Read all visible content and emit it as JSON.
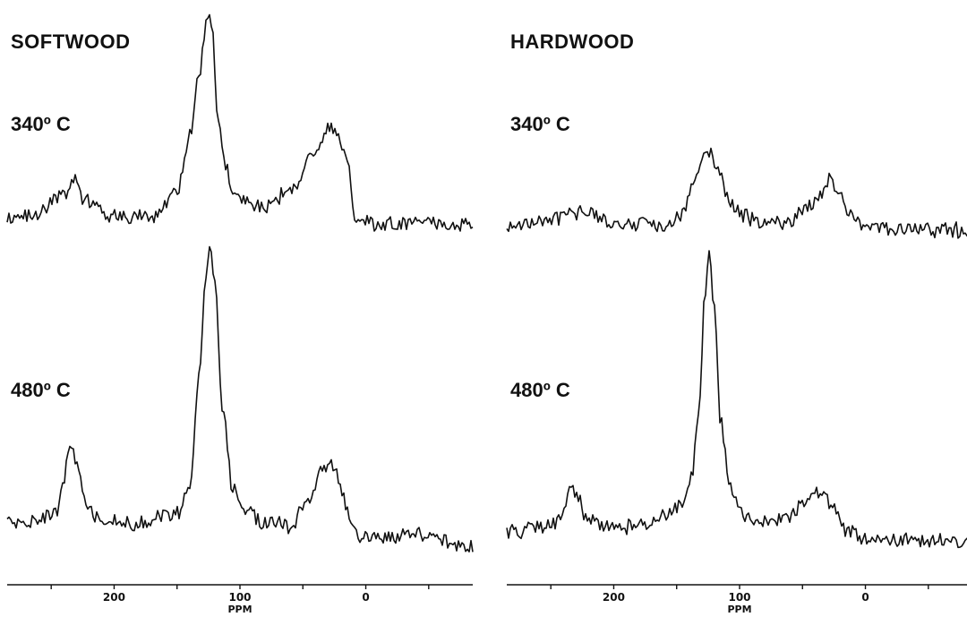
{
  "chart_data": [
    {
      "type": "line",
      "title": "SOFTWOOD",
      "xlabel": "PPM",
      "xlim": [
        285,
        -85
      ],
      "x_reversed": true,
      "x_ticks": [
        200,
        100,
        0
      ],
      "x_tick_labels": [
        "200",
        "100",
        "0"
      ],
      "series": [
        {
          "name": "340º C",
          "x": [
            285,
            260,
            240,
            232,
            225,
            200,
            170,
            150,
            140,
            132,
            126,
            122,
            118,
            112,
            106,
            100,
            80,
            60,
            40,
            28,
            22,
            15,
            8,
            0,
            -40,
            -85
          ],
          "y": [
            0.07,
            0.1,
            0.18,
            0.27,
            0.17,
            0.08,
            0.08,
            0.2,
            0.45,
            0.75,
            1.0,
            0.93,
            0.55,
            0.32,
            0.2,
            0.16,
            0.12,
            0.2,
            0.38,
            0.5,
            0.46,
            0.36,
            0.06,
            0.05,
            0.05,
            0.04
          ]
        },
        {
          "name": "480º C",
          "x": [
            285,
            260,
            245,
            240,
            235,
            230,
            222,
            210,
            180,
            150,
            140,
            132,
            128,
            124,
            120,
            114,
            106,
            95,
            80,
            60,
            45,
            35,
            30,
            25,
            18,
            12,
            5,
            0,
            -40,
            -85
          ],
          "y": [
            0.06,
            0.07,
            0.1,
            0.2,
            0.34,
            0.26,
            0.12,
            0.06,
            0.06,
            0.09,
            0.18,
            0.55,
            0.85,
            1.0,
            0.88,
            0.45,
            0.18,
            0.1,
            0.06,
            0.05,
            0.14,
            0.24,
            0.26,
            0.24,
            0.15,
            0.05,
            0.0,
            0.01,
            0.02,
            -0.02
          ]
        }
      ]
    },
    {
      "type": "line",
      "title": "HARDWOOD",
      "xlabel": "PPM",
      "xlim": [
        285,
        -85
      ],
      "x_reversed": true,
      "x_ticks": [
        200,
        100,
        0
      ],
      "x_tick_labels": [
        "200",
        "100",
        "0"
      ],
      "series": [
        {
          "name": "340º C",
          "x": [
            285,
            260,
            240,
            225,
            200,
            160,
            145,
            135,
            128,
            124,
            118,
            110,
            100,
            90,
            80,
            60,
            45,
            35,
            28,
            22,
            10,
            0,
            -40,
            -85
          ],
          "y": [
            0.04,
            0.06,
            0.08,
            0.1,
            0.05,
            0.05,
            0.1,
            0.25,
            0.35,
            0.38,
            0.3,
            0.18,
            0.1,
            0.07,
            0.05,
            0.06,
            0.12,
            0.18,
            0.25,
            0.18,
            0.1,
            0.04,
            0.02,
            0.02
          ]
        },
        {
          "name": "480º C",
          "x": [
            285,
            250,
            240,
            235,
            230,
            222,
            210,
            180,
            160,
            145,
            138,
            132,
            128,
            124,
            120,
            115,
            108,
            98,
            80,
            60,
            48,
            40,
            35,
            28,
            15,
            0,
            -40,
            -85
          ],
          "y": [
            0.03,
            0.05,
            0.1,
            0.18,
            0.16,
            0.08,
            0.05,
            0.05,
            0.08,
            0.13,
            0.22,
            0.45,
            0.8,
            0.95,
            0.78,
            0.4,
            0.18,
            0.09,
            0.07,
            0.08,
            0.13,
            0.17,
            0.16,
            0.12,
            0.04,
            0.01,
            0.0,
            0.0
          ]
        }
      ]
    }
  ]
}
